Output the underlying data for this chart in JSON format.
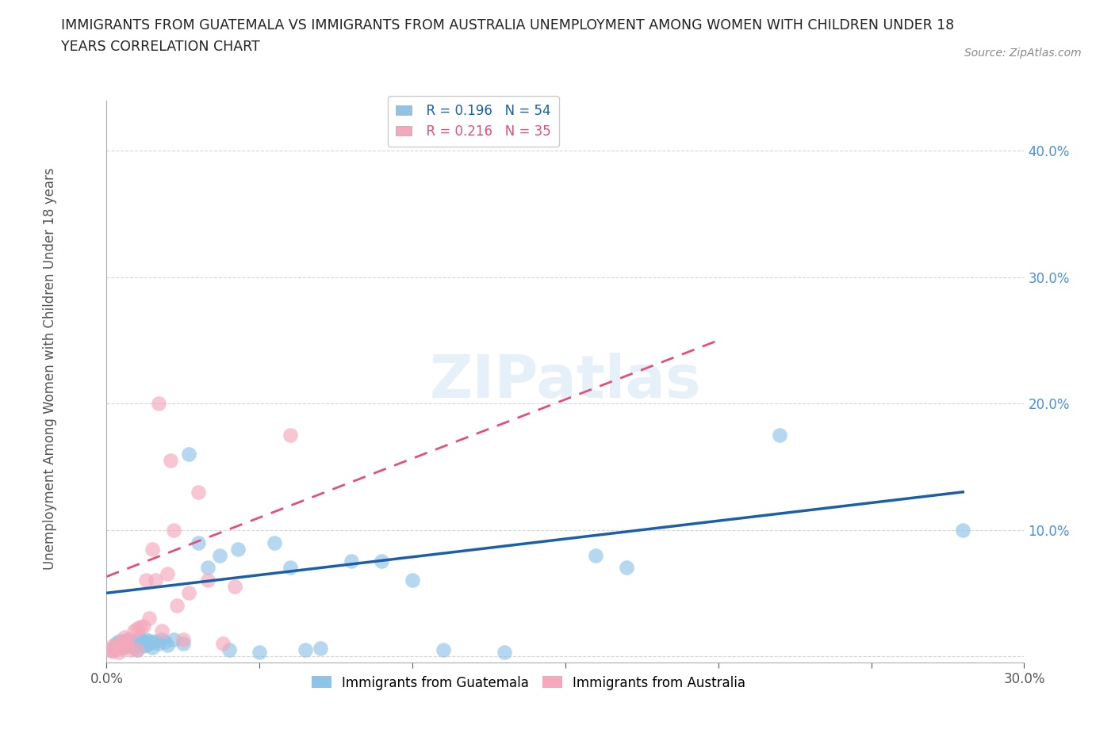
{
  "title": "IMMIGRANTS FROM GUATEMALA VS IMMIGRANTS FROM AUSTRALIA UNEMPLOYMENT AMONG WOMEN WITH CHILDREN UNDER 18\nYEARS CORRELATION CHART",
  "source": "Source: ZipAtlas.com",
  "ylabel": "Unemployment Among Women with Children Under 18 years",
  "xlim": [
    0.0,
    0.3
  ],
  "ylim": [
    -0.005,
    0.44
  ],
  "xticks": [
    0.0,
    0.05,
    0.1,
    0.15,
    0.2,
    0.25,
    0.3
  ],
  "yticks": [
    0.0,
    0.1,
    0.2,
    0.3,
    0.4
  ],
  "guatemala_color": "#8ec4e8",
  "australia_color": "#f4a8bb",
  "guatemala_line_color": "#1a5fa8",
  "australia_line_color": "#e0507a",
  "guatemala_R": 0.196,
  "guatemala_N": 54,
  "australia_R": 0.216,
  "australia_N": 35,
  "watermark": "ZIPatlas",
  "guatemala_x": [
    0.002,
    0.003,
    0.003,
    0.004,
    0.005,
    0.005,
    0.006,
    0.006,
    0.007,
    0.007,
    0.008,
    0.008,
    0.009,
    0.009,
    0.01,
    0.01,
    0.01,
    0.011,
    0.011,
    0.012,
    0.012,
    0.013,
    0.013,
    0.014,
    0.014,
    0.015,
    0.015,
    0.016,
    0.017,
    0.018,
    0.019,
    0.02,
    0.022,
    0.025,
    0.027,
    0.03,
    0.033,
    0.037,
    0.04,
    0.043,
    0.05,
    0.055,
    0.06,
    0.065,
    0.07,
    0.08,
    0.09,
    0.1,
    0.11,
    0.13,
    0.16,
    0.17,
    0.22,
    0.28
  ],
  "guatemala_y": [
    0.005,
    0.01,
    0.007,
    0.012,
    0.008,
    0.006,
    0.009,
    0.011,
    0.01,
    0.013,
    0.008,
    0.011,
    0.007,
    0.012,
    0.005,
    0.009,
    0.013,
    0.01,
    0.014,
    0.008,
    0.011,
    0.009,
    0.013,
    0.01,
    0.012,
    0.007,
    0.011,
    0.012,
    0.01,
    0.013,
    0.011,
    0.009,
    0.013,
    0.01,
    0.16,
    0.09,
    0.07,
    0.08,
    0.005,
    0.085,
    0.003,
    0.09,
    0.07,
    0.005,
    0.006,
    0.075,
    0.075,
    0.06,
    0.005,
    0.003,
    0.08,
    0.07,
    0.175,
    0.1
  ],
  "australia_x": [
    0.001,
    0.002,
    0.002,
    0.003,
    0.004,
    0.004,
    0.005,
    0.005,
    0.006,
    0.006,
    0.007,
    0.007,
    0.008,
    0.009,
    0.01,
    0.01,
    0.011,
    0.012,
    0.013,
    0.014,
    0.015,
    0.016,
    0.017,
    0.018,
    0.02,
    0.021,
    0.022,
    0.023,
    0.025,
    0.027,
    0.03,
    0.033,
    0.038,
    0.042,
    0.06
  ],
  "australia_y": [
    0.005,
    0.008,
    0.004,
    0.006,
    0.01,
    0.003,
    0.007,
    0.012,
    0.01,
    0.015,
    0.008,
    0.013,
    0.005,
    0.02,
    0.005,
    0.022,
    0.023,
    0.024,
    0.06,
    0.03,
    0.085,
    0.06,
    0.2,
    0.02,
    0.065,
    0.155,
    0.1,
    0.04,
    0.013,
    0.05,
    0.13,
    0.06,
    0.01,
    0.055,
    0.175
  ],
  "guat_line_x": [
    0.0,
    0.28
  ],
  "guat_line_y": [
    0.05,
    0.13
  ],
  "aus_line_x": [
    0.0,
    0.2
  ],
  "aus_line_y": [
    0.063,
    0.25
  ]
}
